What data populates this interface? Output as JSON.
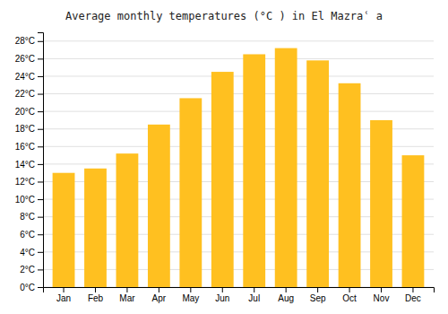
{
  "chart_data": {
    "type": "bar",
    "title": "Average monthly temperatures (°C ) in El Mazraʿ a",
    "categories": [
      "Jan",
      "Feb",
      "Mar",
      "Apr",
      "May",
      "Jun",
      "Jul",
      "Aug",
      "Sep",
      "Oct",
      "Nov",
      "Dec"
    ],
    "values": [
      13.0,
      13.5,
      15.2,
      18.5,
      21.5,
      24.5,
      26.5,
      27.2,
      25.8,
      23.2,
      19.0,
      15.0
    ],
    "color": "#FFC020",
    "ylim": [
      0,
      29
    ],
    "yticks": [
      {
        "value": 0,
        "label": "0°C"
      },
      {
        "value": 2,
        "label": "2°C"
      },
      {
        "value": 4,
        "label": "4°C"
      },
      {
        "value": 6,
        "label": "6°C"
      },
      {
        "value": 8,
        "label": "8°C"
      },
      {
        "value": 10,
        "label": "10°C"
      },
      {
        "value": 12,
        "label": "12°C"
      },
      {
        "value": 14,
        "label": "14°C"
      },
      {
        "value": 16,
        "label": "16°C"
      },
      {
        "value": 18,
        "label": "18°C"
      },
      {
        "value": 20,
        "label": "20°C"
      },
      {
        "value": 22,
        "label": "22°C"
      },
      {
        "value": 24,
        "label": "24°C"
      },
      {
        "value": 26,
        "label": "26°C"
      },
      {
        "value": 28,
        "label": "28°C"
      }
    ],
    "grid": true
  }
}
